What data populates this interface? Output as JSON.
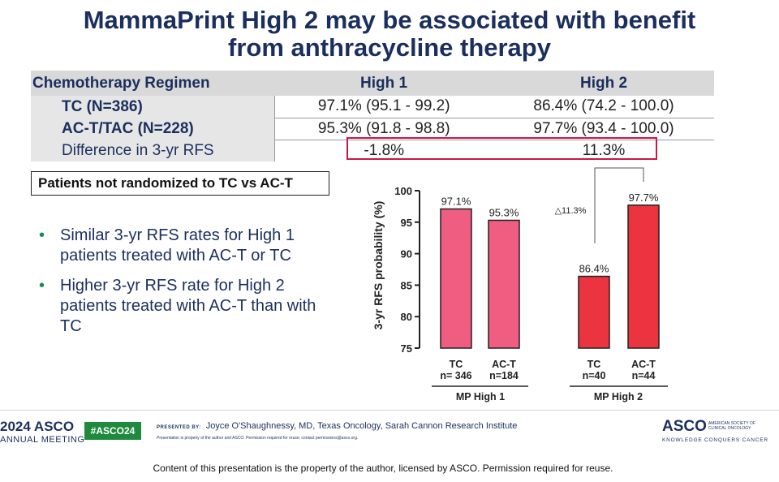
{
  "title_line1": "MammaPrint High 2 may be associated with benefit",
  "title_line2": "from anthracycline therapy",
  "table": {
    "headers": [
      "Chemotherapy Regimen",
      "High 1",
      "High 2"
    ],
    "rows": [
      {
        "label": "TC  (N=386)",
        "high1": "97.1% (95.1 - 99.2)",
        "high2": "86.4% (74.2 - 100.0)"
      },
      {
        "label": "AC-T/TAC  (N=228)",
        "high1": "95.3% (91.8 - 98.8)",
        "high2": "97.7% (93.4 - 100.0)"
      },
      {
        "label": "Difference in 3-yr RFS",
        "high1": "-1.8%",
        "high2": "11.3%"
      }
    ]
  },
  "note": "Patients not randomized to TC vs AC-T",
  "bullets": [
    "Similar 3-yr RFS rates for High 1 patients treated with AC-T or TC",
    "Higher 3-yr RFS rate for High 2 patients treated with AC-T than with TC"
  ],
  "chart_data": {
    "type": "bar",
    "ylabel": "3-yr RFS probability (%)",
    "ylim": [
      75,
      100
    ],
    "yticks": [
      75,
      80,
      85,
      90,
      95,
      100
    ],
    "groups": [
      {
        "name": "MP High 1",
        "bars": [
          {
            "label": "TC",
            "n": "n= 346",
            "value": 97.1,
            "value_label": "97.1%",
            "color": "#ef5d80"
          },
          {
            "label": "AC-T",
            "n": "n=184",
            "value": 95.3,
            "value_label": "95.3%",
            "color": "#ef5d80"
          }
        ]
      },
      {
        "name": "MP High 2",
        "bars": [
          {
            "label": "TC",
            "n": "n=40",
            "value": 86.4,
            "value_label": "86.4%",
            "color": "#ec3340"
          },
          {
            "label": "AC-T",
            "n": "n=44",
            "value": 97.7,
            "value_label": "97.7%",
            "color": "#ec3340"
          }
        ]
      }
    ],
    "annotation": "△11.3%"
  },
  "footer": {
    "year": "2024",
    "asco": "ASCO",
    "meeting": "ANNUAL MEETING",
    "hashtag": "#ASCO24",
    "presented_by_label": "PRESENTED BY:",
    "presenter": "Joyce O'Shaughnessy, MD, Texas Oncology, Sarah Cannon Research Institute",
    "small_notice": "Presentation is property of the author and ASCO. Permission required for reuse; contact permissions@asco.org.",
    "logo": "ASCO",
    "society": "AMERICAN SOCIETY OF CLINICAL ONCOLOGY",
    "tagline": "KNOWLEDGE CONQUERS CANCER",
    "bottom_notice": "Content of this presentation is the property of the author, licensed by ASCO. Permission required for reuse."
  },
  "colors": {
    "title": "#1b2f5e",
    "high1_bar": "#ef5d80",
    "high2_bar": "#ec3340",
    "highlight_box": "#c8184a",
    "bullet_dot": "#1a8a55"
  }
}
